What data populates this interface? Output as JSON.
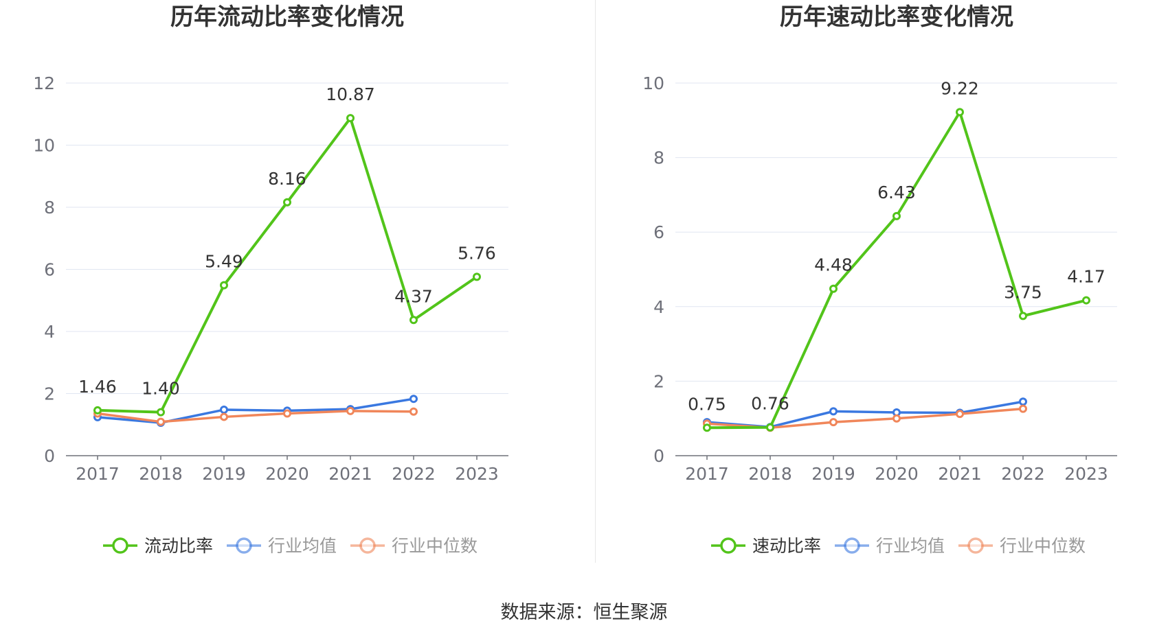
{
  "source_label": "数据来源：恒生聚源",
  "chart_data": [
    {
      "type": "line",
      "title": "历年流动比率变化情况",
      "categories": [
        "2017",
        "2018",
        "2019",
        "2020",
        "2021",
        "2022",
        "2023"
      ],
      "ylim": [
        0,
        12
      ],
      "yticks": [
        "0",
        "2",
        "4",
        "6",
        "8",
        "10",
        "12"
      ],
      "grid": true,
      "legend_position": "bottom",
      "series": [
        {
          "name": "流动比率",
          "color": "#52c41a",
          "values": [
            1.46,
            1.4,
            5.49,
            8.16,
            10.87,
            4.37,
            5.76
          ],
          "labels": [
            "1.46",
            "1.40",
            "5.49",
            "8.16",
            "10.87",
            "4.37",
            "5.76"
          ]
        },
        {
          "name": "行业均值",
          "color": "#3a78e0",
          "values": [
            1.24,
            1.06,
            1.48,
            1.45,
            1.5,
            1.83,
            null
          ]
        },
        {
          "name": "行业中位数",
          "color": "#f0865a",
          "values": [
            1.36,
            1.09,
            1.25,
            1.36,
            1.44,
            1.42,
            null
          ]
        }
      ]
    },
    {
      "type": "line",
      "title": "历年速动比率变化情况",
      "categories": [
        "2017",
        "2018",
        "2019",
        "2020",
        "2021",
        "2022",
        "2023"
      ],
      "ylim": [
        0,
        10
      ],
      "yticks": [
        "0",
        "2",
        "4",
        "6",
        "8",
        "10"
      ],
      "grid": true,
      "legend_position": "bottom",
      "series": [
        {
          "name": "速动比率",
          "color": "#52c41a",
          "values": [
            0.75,
            0.76,
            4.48,
            6.43,
            9.22,
            3.75,
            4.17
          ],
          "labels": [
            "0.75",
            "0.76",
            "4.48",
            "6.43",
            "9.22",
            "3.75",
            "4.17"
          ]
        },
        {
          "name": "行业均值",
          "color": "#3a78e0",
          "values": [
            0.9,
            0.77,
            1.19,
            1.16,
            1.15,
            1.45,
            null
          ]
        },
        {
          "name": "行业中位数",
          "color": "#f0865a",
          "values": [
            0.86,
            0.75,
            0.9,
            1.0,
            1.12,
            1.26,
            null
          ]
        }
      ]
    }
  ]
}
